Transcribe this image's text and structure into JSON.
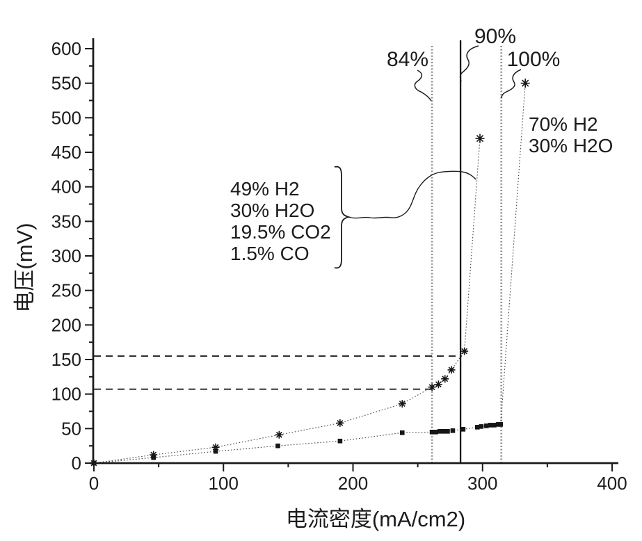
{
  "chart_data": {
    "type": "line",
    "title": "",
    "xlabel": "电流密度(mA/cm2)",
    "ylabel": "电压(mV)",
    "xlim": [
      0,
      400
    ],
    "ylim": [
      0,
      600
    ],
    "x_major_tick_step": 100,
    "x_minor_tick_step": 50,
    "y_major_tick_step": 50,
    "y_minor_tick_step": 25,
    "grid": false,
    "legend_position": "none",
    "series": [
      {
        "name": "49% H2 / 30% H2O / 19.5% CO2 / 1.5% CO fuel curve",
        "marker": "asterisk",
        "line_style": "dotted",
        "points": [
          [
            0,
            0
          ],
          [
            46,
            12
          ],
          [
            94,
            23
          ],
          [
            143,
            41
          ],
          [
            190,
            58
          ],
          [
            238,
            86
          ],
          [
            261,
            110
          ],
          [
            266,
            114
          ],
          [
            271,
            122
          ],
          [
            276,
            135
          ],
          [
            286,
            162
          ],
          [
            298,
            470
          ]
        ]
      },
      {
        "name": "70% H2 / 30% H2O fuel curve",
        "marker": "square",
        "end_marker": "asterisk",
        "line_style": "dotted",
        "points": [
          [
            0,
            0
          ],
          [
            46,
            8
          ],
          [
            94,
            17
          ],
          [
            142,
            25
          ],
          [
            190,
            32
          ],
          [
            238,
            44
          ],
          [
            261,
            45
          ],
          [
            264,
            45
          ],
          [
            267,
            46
          ],
          [
            270,
            46
          ],
          [
            273,
            46
          ],
          [
            277,
            47
          ],
          [
            285,
            49
          ],
          [
            296,
            52
          ],
          [
            299,
            53
          ],
          [
            303,
            54
          ],
          [
            306,
            55
          ],
          [
            309,
            55
          ],
          [
            312,
            56
          ],
          [
            314,
            56
          ],
          [
            333,
            550
          ]
        ]
      }
    ],
    "vertical_reference_lines": [
      {
        "label": "84%",
        "x": 261,
        "style": "dotted"
      },
      {
        "label": "90%",
        "x": 283,
        "style": "solid"
      },
      {
        "label": "100%",
        "x": 314.5,
        "style": "dotted"
      }
    ],
    "horizontal_dashed_lines": [
      {
        "y": 155,
        "x_start": 0,
        "x_end": 284
      },
      {
        "y": 107,
        "x_start": 0,
        "x_end": 261
      }
    ],
    "annotations": {
      "gas_mix_49": [
        "49% H2",
        "30% H2O",
        "19.5% CO2",
        "1.5% CO"
      ],
      "gas_mix_70": [
        "70% H2",
        "30% H2O"
      ]
    }
  },
  "colors": {
    "background": "#ffffff",
    "axis": "#1a1a1a",
    "text": "#1c1c1c",
    "dotted_reference_line": "#949494",
    "solid_reference_line": "#111111",
    "dashed_guide_line": "#222222",
    "series_line": "#4a4a4a",
    "marker": "#161616"
  }
}
